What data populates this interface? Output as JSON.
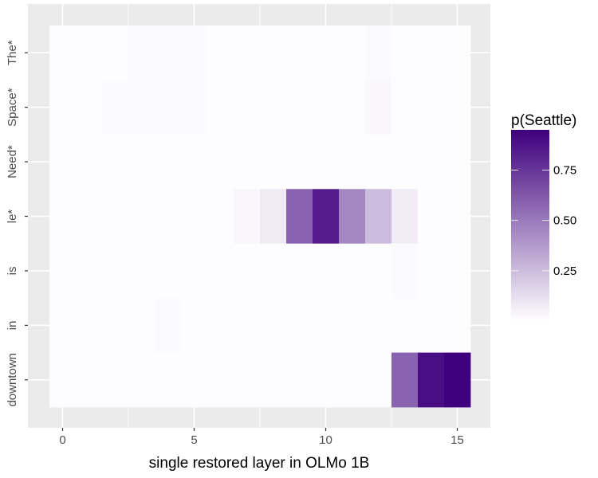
{
  "chart_data": {
    "type": "heatmap",
    "title": "",
    "xlabel": "single restored layer in OLMo 1B",
    "ylabel": "",
    "x_ticks": [
      0,
      5,
      10,
      15
    ],
    "x_range": [
      -1.5,
      16.5
    ],
    "y_categories": [
      "The*",
      "Space*",
      "Need*",
      "le*",
      "is",
      "in",
      "downtown"
    ],
    "legend": {
      "title": "p(Seattle)",
      "breaks": [
        0.25,
        0.5,
        0.75
      ],
      "break_labels": [
        "0.25",
        "0.50",
        "0.75"
      ],
      "range": [
        0.0,
        0.95
      ],
      "low_color": "#ffffff",
      "high_color": "#3f007d",
      "placement": "right"
    },
    "colors": {
      "panel_background": "#ebebeb",
      "grid": "#ffffff"
    },
    "values": [
      [
        0.01,
        0.01,
        0.01,
        0.02,
        0.02,
        0.02,
        0.01,
        0.01,
        0.01,
        0.01,
        0.01,
        0.01,
        0.02,
        0.01,
        0.01,
        0.01
      ],
      [
        0.01,
        0.01,
        0.02,
        0.02,
        0.02,
        0.02,
        0.01,
        0.01,
        0.01,
        0.01,
        0.01,
        0.01,
        0.03,
        0.01,
        0.01,
        0.01
      ],
      [
        0.01,
        0.01,
        0.01,
        0.01,
        0.01,
        0.01,
        0.01,
        0.01,
        0.01,
        0.01,
        0.01,
        0.01,
        0.01,
        0.01,
        0.01,
        0.01
      ],
      [
        0.01,
        0.01,
        0.01,
        0.01,
        0.01,
        0.01,
        0.01,
        0.03,
        0.08,
        0.58,
        0.85,
        0.45,
        0.25,
        0.07,
        0.01,
        0.01
      ],
      [
        0.01,
        0.01,
        0.01,
        0.01,
        0.01,
        0.01,
        0.01,
        0.01,
        0.01,
        0.01,
        0.01,
        0.01,
        0.01,
        0.02,
        0.01,
        0.01
      ],
      [
        0.01,
        0.01,
        0.01,
        0.01,
        0.02,
        0.01,
        0.01,
        0.01,
        0.01,
        0.01,
        0.01,
        0.01,
        0.01,
        0.01,
        0.01,
        0.01
      ],
      [
        0.01,
        0.01,
        0.01,
        0.01,
        0.01,
        0.01,
        0.01,
        0.01,
        0.01,
        0.01,
        0.01,
        0.01,
        0.01,
        0.58,
        0.9,
        0.95
      ]
    ]
  }
}
